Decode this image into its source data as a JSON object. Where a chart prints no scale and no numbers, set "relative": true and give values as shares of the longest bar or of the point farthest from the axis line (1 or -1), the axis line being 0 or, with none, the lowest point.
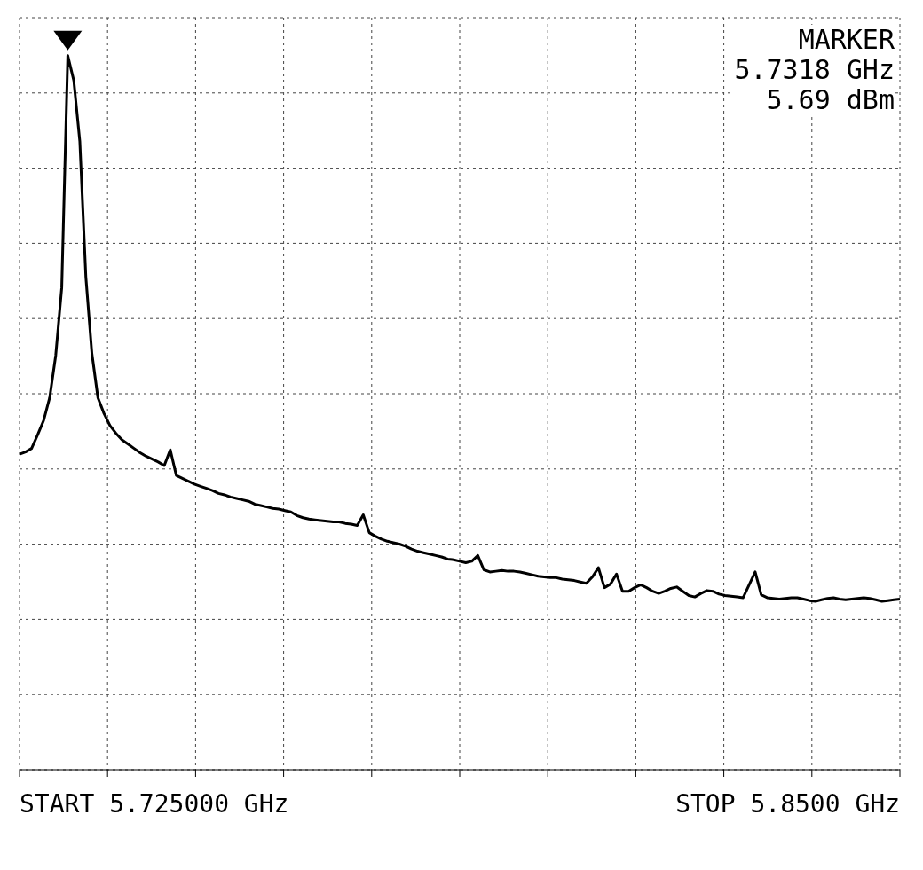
{
  "chart_data": {
    "type": "line",
    "relative": true,
    "color": "#000000",
    "line_style": "solid",
    "marker": "none",
    "grid": true,
    "annotations": [
      "MARKER",
      "5.7318 GHz",
      "5.69 dBm",
      "START 5.725000 GHz",
      "STOP 5.8500 GHz"
    ],
    "categories": [
      null,
      null,
      null,
      null,
      null,
      null,
      null,
      null,
      null,
      null,
      null,
      null,
      null,
      null,
      null,
      null,
      null,
      null,
      null,
      null,
      null,
      null,
      null,
      null,
      null,
      null,
      null,
      null,
      null,
      null,
      null,
      null,
      null,
      null,
      null,
      null,
      null,
      null,
      null,
      null,
      null,
      null,
      null,
      null,
      null,
      null,
      null,
      null,
      null,
      null,
      null,
      null,
      null,
      null,
      null,
      null,
      null,
      null,
      null,
      null,
      null,
      null,
      null,
      null,
      null,
      null,
      null,
      null,
      null,
      null,
      null,
      null,
      null,
      null,
      null,
      null,
      null,
      null,
      null,
      null,
      null,
      null,
      null,
      null,
      null,
      null,
      null,
      null,
      null,
      null,
      null,
      null,
      null,
      null,
      null,
      null,
      null,
      null,
      null,
      null,
      null,
      null,
      null,
      null,
      null,
      null,
      null,
      null,
      null,
      null,
      null,
      null,
      null,
      null,
      null,
      null,
      null,
      null,
      null,
      null,
      null,
      null,
      null,
      null,
      null,
      null,
      null,
      null,
      null,
      null,
      null,
      null,
      null,
      null,
      null,
      null,
      null,
      null,
      null,
      null,
      null,
      null,
      null,
      null,
      null,
      null,
      null
    ],
    "values": [
      0.442,
      0.445,
      0.45,
      0.469,
      0.489,
      0.521,
      0.58,
      0.675,
      1.0,
      0.965,
      0.88,
      0.69,
      0.583,
      0.521,
      0.499,
      0.482,
      0.471,
      0.462,
      0.456,
      0.45,
      0.444,
      0.439,
      0.435,
      0.431,
      0.426,
      0.448,
      0.412,
      0.408,
      0.404,
      0.4,
      0.397,
      0.394,
      0.391,
      0.387,
      0.385,
      0.382,
      0.38,
      0.378,
      0.376,
      0.372,
      0.37,
      0.368,
      0.366,
      0.365,
      0.363,
      0.361,
      0.356,
      0.353,
      0.351,
      0.35,
      0.349,
      0.348,
      0.347,
      0.347,
      0.345,
      0.344,
      0.342,
      0.357,
      0.332,
      0.327,
      0.323,
      0.32,
      0.318,
      0.316,
      0.313,
      0.309,
      0.306,
      0.304,
      0.302,
      0.3,
      0.298,
      0.295,
      0.294,
      0.292,
      0.29,
      0.292,
      0.3,
      0.28,
      0.277,
      0.278,
      0.279,
      0.278,
      0.278,
      0.277,
      0.275,
      0.273,
      0.271,
      0.27,
      0.269,
      0.269,
      0.267,
      0.266,
      0.265,
      0.263,
      0.261,
      0.27,
      0.283,
      0.255,
      0.26,
      0.274,
      0.25,
      0.25,
      0.255,
      0.259,
      0.255,
      0.25,
      0.247,
      0.25,
      0.254,
      0.256,
      0.25,
      0.244,
      0.242,
      0.247,
      0.251,
      0.25,
      0.246,
      0.244,
      0.243,
      0.242,
      0.241,
      0.259,
      0.277,
      0.245,
      0.241,
      0.24,
      0.239,
      0.24,
      0.241,
      0.241,
      0.239,
      0.237,
      0.236,
      0.238,
      0.24,
      0.241,
      0.239,
      0.238,
      0.239,
      0.24,
      0.241,
      0.24,
      0.238,
      0.236,
      0.237,
      0.238,
      0.239
    ]
  }
}
